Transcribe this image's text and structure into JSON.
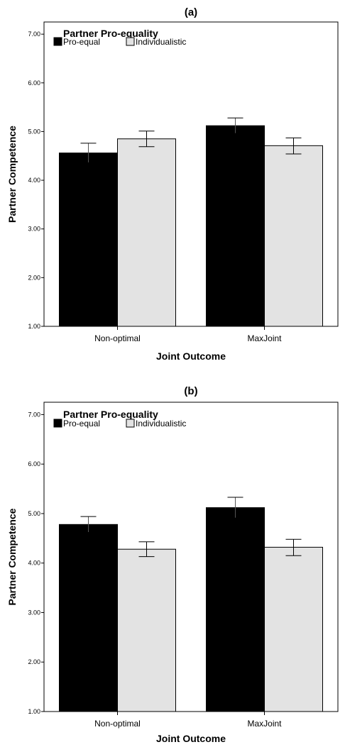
{
  "chart_data": [
    {
      "type": "bar",
      "title": "(a)",
      "xlabel": "Joint Outcome",
      "ylabel": "Partner Competence",
      "ylim": [
        1.0,
        7.25
      ],
      "yticks": [
        "1.00",
        "2.00",
        "3.00",
        "4.00",
        "5.00",
        "6.00",
        "7.00"
      ],
      "categories": [
        "Non-optimal",
        "MaxJoint"
      ],
      "legend_title": "Partner Pro-equality",
      "legend_position": "top-left",
      "series": [
        {
          "name": "Pro-equal",
          "color": "#000000",
          "values": [
            4.56,
            5.12
          ],
          "error_low": [
            4.36,
            4.96
          ],
          "error_high": [
            4.76,
            5.28
          ]
        },
        {
          "name": "Individualistic",
          "color": "#e3e3e3",
          "values": [
            4.85,
            4.71
          ],
          "error_low": [
            4.69,
            4.54
          ],
          "error_high": [
            5.01,
            4.87
          ]
        }
      ]
    },
    {
      "type": "bar",
      "title": "(b)",
      "xlabel": "Joint Outcome",
      "ylabel": "Partner Competence",
      "ylim": [
        1.0,
        7.25
      ],
      "yticks": [
        "1.00",
        "2.00",
        "3.00",
        "4.00",
        "5.00",
        "6.00",
        "7.00"
      ],
      "categories": [
        "Non-optimal",
        "MaxJoint"
      ],
      "legend_title": "Partner Pro-equality",
      "legend_position": "top-left",
      "series": [
        {
          "name": "Pro-equal",
          "color": "#000000",
          "values": [
            4.78,
            5.12
          ],
          "error_low": [
            4.62,
            4.91
          ],
          "error_high": [
            4.94,
            5.33
          ]
        },
        {
          "name": "Individualistic",
          "color": "#e3e3e3",
          "values": [
            4.28,
            4.32
          ],
          "error_low": [
            4.13,
            4.15
          ],
          "error_high": [
            4.43,
            4.48
          ]
        }
      ]
    }
  ]
}
